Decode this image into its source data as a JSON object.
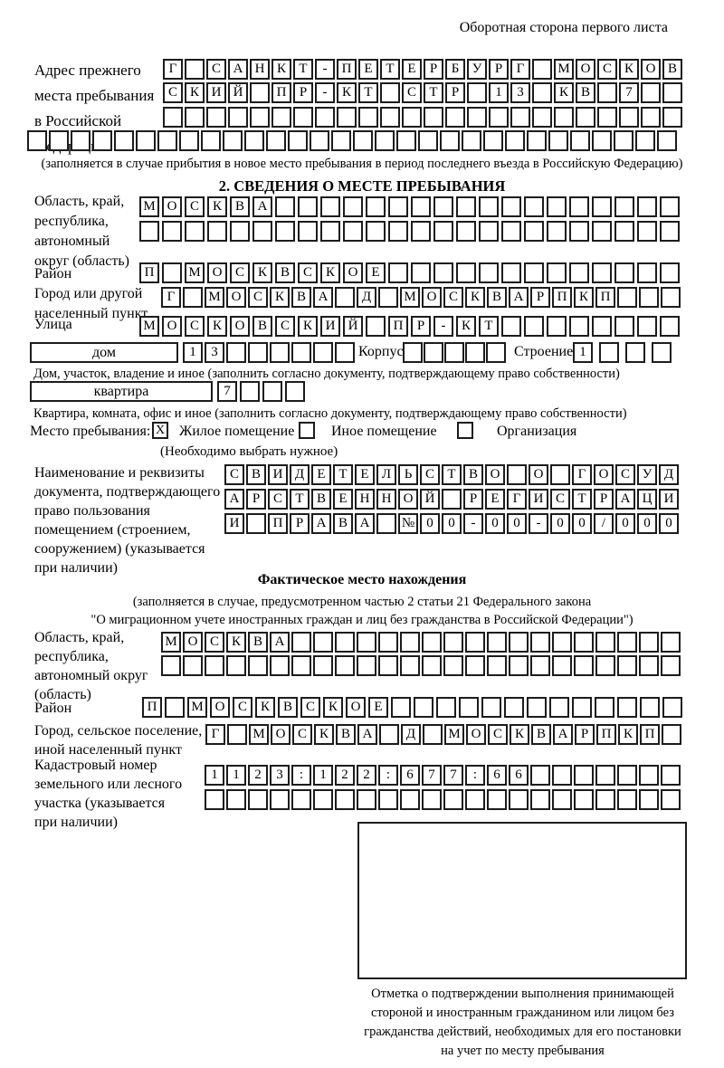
{
  "header": {
    "note": "Оборотная сторона первого листа"
  },
  "prev_address": {
    "label_lines": [
      "Адрес прежнего",
      "места пребывания",
      "в Российской",
      "Федерации"
    ],
    "rows": [
      {
        "text": "Г САНКТ-ПЕТЕРБУРГ МОСКОВ",
        "len": 24
      },
      {
        "text": "СКИЙ ПР-КТ СТР 13 КВ 7",
        "len": 24
      },
      {
        "text": "",
        "len": 24
      },
      {
        "text": "",
        "len": 30
      }
    ],
    "note": "(заполняется в случае прибытия в новое место пребывания в период последнего въезда в Российскую Федерацию)"
  },
  "section2": {
    "title": "2. СВЕДЕНИЯ О МЕСТЕ ПРЕБЫВАНИЯ",
    "oblast": {
      "label_lines": [
        "Область, край,",
        "республика,",
        "автономный",
        "округ (область)"
      ],
      "rows": [
        {
          "text": "МОСКВА",
          "len": 24
        },
        {
          "text": "",
          "len": 24
        }
      ]
    },
    "raion": {
      "label": "Район",
      "row": {
        "text": "П МОСКВСКОЕ",
        "len": 24
      }
    },
    "gorod": {
      "label_lines": [
        "Город или другой",
        "населенный пункт"
      ],
      "row": {
        "text": "Г МОСКВА Д МОСКВАРПКП",
        "len": 24
      }
    },
    "ulitsa": {
      "label": "Улица",
      "row": {
        "text": "МОСКОВСКИЙ ПР-КТ",
        "len": 24
      }
    },
    "dom": {
      "box_label": "дом",
      "row": {
        "text": "13",
        "len": 8
      },
      "korpus_label": "Корпус",
      "korpus_row": {
        "text": "",
        "len": 5
      },
      "stroenie_label": "Строение",
      "stroenie_row": {
        "text": "1",
        "len": 4
      },
      "note": "Дом, участок, владение и иное (заполнить согласно документу, подтверждающему право собственности)"
    },
    "kvartira": {
      "box_label": "квартира",
      "row": {
        "text": "7",
        "len": 4
      },
      "note": "Квартира, комната, офис и иное (заполнить согласно документу, подтверждающему право собственности)"
    },
    "mesto": {
      "label": "Место пребывания:",
      "options": [
        {
          "label": "Жилое помещение",
          "checked": "X"
        },
        {
          "label": "Иное помещение",
          "checked": ""
        },
        {
          "label": "Организация",
          "checked": ""
        }
      ],
      "note": "(Необходимо выбрать нужное)"
    },
    "doc": {
      "label_lines": [
        "Наименование и реквизиты",
        "документа, подтверждающего",
        "право пользования",
        "помещением (строением,",
        "сооружением) (указывается",
        "при наличии)"
      ],
      "rows": [
        {
          "text": "СВИДЕТЕЛЬСТВО О ГОСУД",
          "len": 21
        },
        {
          "text": "АРСТВЕННОЙ РЕГИСТРАЦИ",
          "len": 21
        },
        {
          "text": "И ПРАВА №00-00-00/000",
          "len": 21
        }
      ]
    }
  },
  "fact": {
    "title": "Фактическое место нахождения",
    "note1": "(заполняется в случае, предусмотренном частью 2 статьи 21 Федерального закона",
    "note2": "\"О миграционном учете иностранных граждан и лиц без гражданства в Российской Федерации\")",
    "oblast": {
      "label_lines": [
        "Область, край,",
        "республика,",
        "автономный округ",
        "(область)"
      ],
      "rows": [
        {
          "text": "МОСКВА",
          "len": 24
        },
        {
          "text": "",
          "len": 24
        }
      ]
    },
    "raion": {
      "label": "Район",
      "row": {
        "text": "П МОСКВСКОЕ",
        "len": 24
      }
    },
    "gorod": {
      "label_lines": [
        "Город, сельское поселение,",
        "иной населенный пункт"
      ],
      "row": {
        "text": "Г МОСКВА Д МОСКВАРПКП",
        "len": 22
      }
    },
    "kadastr": {
      "label_lines": [
        "Кадастровый номер",
        "земельного или лесного",
        "участка (указывается",
        "при наличии)"
      ],
      "rows": [
        {
          "text": "1123:122:677:66",
          "len": 22
        },
        {
          "text": "",
          "len": 22
        }
      ]
    },
    "stamp_note_lines": [
      "Отметка о подтверждении выполнения принимающей",
      "стороной и иностранным гражданином или лицом без",
      "гражданства действий, необходимых для его постановки",
      "на учет по месту пребывания"
    ]
  }
}
